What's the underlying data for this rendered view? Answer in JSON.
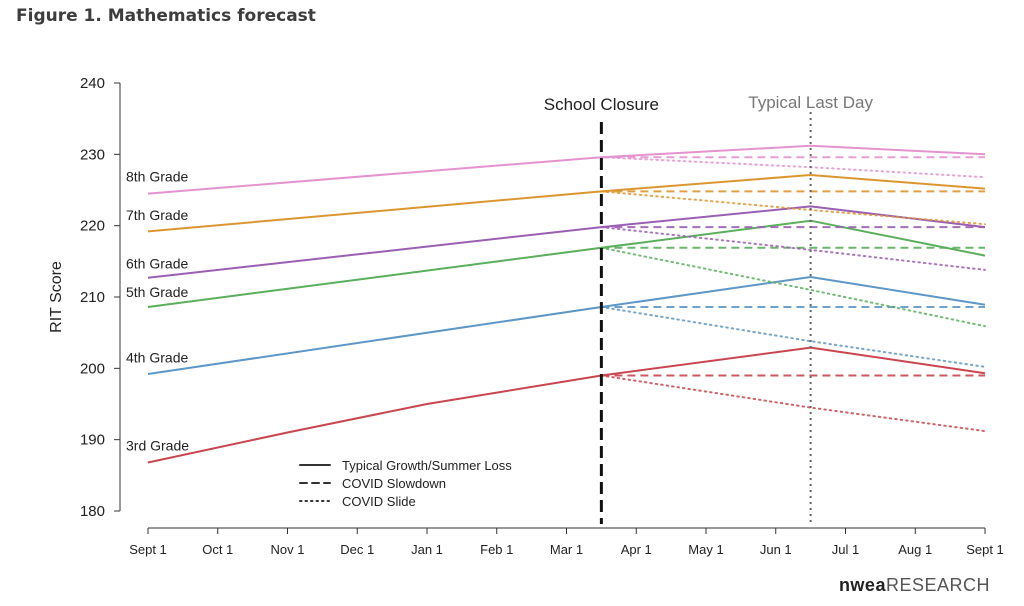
{
  "figure_title": "Figure 1. Mathematics forecast",
  "logo": {
    "brand": "nwea",
    "suffix": "RESEARCH"
  },
  "chart_data": {
    "type": "line",
    "title": "Figure 1. Mathematics forecast",
    "xlabel": "",
    "ylabel": "RIT Score",
    "ylim": [
      180,
      240
    ],
    "yticks": [
      180,
      190,
      200,
      210,
      220,
      230,
      240
    ],
    "x_months": [
      0,
      1,
      2,
      3,
      4,
      5,
      6,
      7,
      8,
      9,
      10,
      11,
      12
    ],
    "x_tick_labels": [
      "Sept 1",
      "Oct 1",
      "Nov 1",
      "Dec 1",
      "Jan 1",
      "Feb 1",
      "Mar 1",
      "Apr 1",
      "May 1",
      "Jun 1",
      "Jul 1",
      "Aug 1",
      "Sept 1"
    ],
    "events": [
      {
        "label": "School Closure",
        "x": 6.5,
        "style": "dashed"
      },
      {
        "label": "Typical Last Day",
        "x": 9.5,
        "style": "dotted"
      }
    ],
    "legend": {
      "placement": "bottom-center",
      "items": [
        {
          "label": "Typical Growth/Summer Loss",
          "style": "solid"
        },
        {
          "label": "COVID Slowdown",
          "style": "dashed"
        },
        {
          "label": "COVID Slide",
          "style": "dotted"
        }
      ]
    },
    "series": [
      {
        "name": "3rd Grade",
        "color": "#c9454f",
        "label_y": 188.5,
        "typical": [
          [
            0,
            186.8
          ],
          [
            2,
            191
          ],
          [
            4,
            195
          ],
          [
            6.5,
            199
          ],
          [
            9.5,
            202.9
          ],
          [
            12,
            199.3
          ]
        ],
        "slowdown": [
          [
            6.5,
            199
          ],
          [
            12,
            199
          ]
        ],
        "slide": [
          [
            6.5,
            199
          ],
          [
            9.5,
            194.5
          ],
          [
            12,
            191.2
          ]
        ]
      },
      {
        "name": "4th Grade",
        "color": "#5e97c6",
        "label_y": 200.8,
        "typical": [
          [
            0,
            199.2
          ],
          [
            6.5,
            208.6
          ],
          [
            9.5,
            212.8
          ],
          [
            12,
            208.9
          ]
        ],
        "slowdown": [
          [
            6.5,
            208.6
          ],
          [
            12,
            208.6
          ]
        ],
        "slide": [
          [
            6.5,
            208.6
          ],
          [
            9.5,
            203.8
          ],
          [
            12,
            200.2
          ]
        ]
      },
      {
        "name": "5th Grade",
        "color": "#5aae5c",
        "label_y": 210,
        "typical": [
          [
            0,
            208.6
          ],
          [
            6.5,
            216.9
          ],
          [
            9.5,
            220.7
          ],
          [
            12,
            215.8
          ]
        ],
        "slowdown": [
          [
            6.5,
            216.9
          ],
          [
            12,
            216.9
          ]
        ],
        "slide": [
          [
            6.5,
            216.9
          ],
          [
            9.5,
            211
          ],
          [
            12,
            205.9
          ]
        ]
      },
      {
        "name": "6th Grade",
        "color": "#9a5fb3",
        "label_y": 214,
        "typical": [
          [
            0,
            212.7
          ],
          [
            6.5,
            219.8
          ],
          [
            9.5,
            222.7
          ],
          [
            12,
            219.8
          ]
        ],
        "slowdown": [
          [
            6.5,
            219.8
          ],
          [
            12,
            219.8
          ]
        ],
        "slide": [
          [
            6.5,
            219.8
          ],
          [
            9.5,
            216.6
          ],
          [
            12,
            213.8
          ]
        ]
      },
      {
        "name": "7th Grade",
        "color": "#dc9630",
        "label_y": 220.8,
        "typical": [
          [
            0,
            219.2
          ],
          [
            6.5,
            224.8
          ],
          [
            9.5,
            227.1
          ],
          [
            12,
            225.2
          ]
        ],
        "slowdown": [
          [
            6.5,
            224.8
          ],
          [
            12,
            224.8
          ]
        ],
        "slide": [
          [
            6.5,
            224.8
          ],
          [
            9.5,
            222.2
          ],
          [
            12,
            220.2
          ]
        ]
      },
      {
        "name": "8th Grade",
        "color": "#e493cf",
        "label_y": 226.2,
        "typical": [
          [
            0,
            224.5
          ],
          [
            6.5,
            229.6
          ],
          [
            9.5,
            231.2
          ],
          [
            12,
            230
          ]
        ],
        "slowdown": [
          [
            6.5,
            229.6
          ],
          [
            12,
            229.6
          ]
        ],
        "slide": [
          [
            6.5,
            229.6
          ],
          [
            9.5,
            228.2
          ],
          [
            12,
            226.8
          ]
        ]
      }
    ]
  }
}
